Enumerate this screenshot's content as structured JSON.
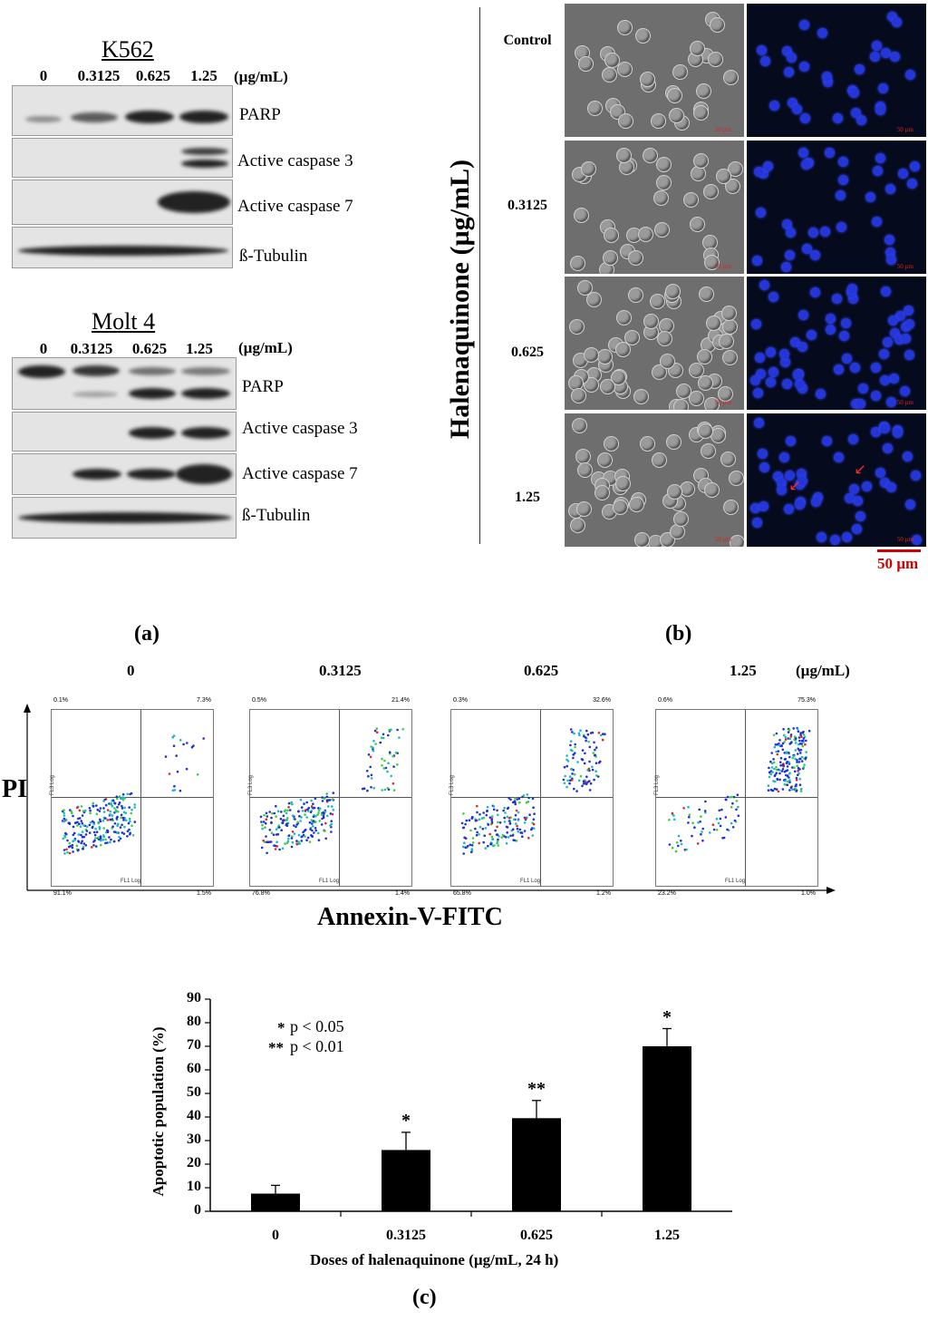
{
  "panel_a": {
    "unit": "(µg/mL)",
    "doses": [
      "0",
      "0.3125",
      "0.625",
      "1.25"
    ],
    "k562": {
      "title": "K562",
      "proteins": [
        "PARP",
        "Active caspase 3",
        "Active caspase 7",
        "ß-Tubulin"
      ]
    },
    "molt4": {
      "title": "Molt 4",
      "proteins": [
        "PARP",
        "Active caspase 3",
        "Active caspase 7",
        "ß-Tubulin"
      ]
    },
    "caption": "(a)"
  },
  "panel_b": {
    "axis_title": "Halenaquinone (µg/mL)",
    "rows": [
      "Control",
      "0.3125",
      "0.625",
      "1.25"
    ],
    "image_scale": "50 µm",
    "scale_bar_label": "50 µm",
    "caption": "(b)"
  },
  "panel_c_flow": {
    "doses": [
      "0",
      "0.3125",
      "0.625",
      "1.25"
    ],
    "unit": "(µg/mL)",
    "y_axis_title": "PI",
    "x_axis_title": "Annexin-V-FITC",
    "plot_x_label": "FL1 Log",
    "plot_y_label": "FL3 Log",
    "quadrants": [
      {
        "ul": "0.1%",
        "ur": "7.3%",
        "ll": "91.1%",
        "lr": "1.5%"
      },
      {
        "ul": "0.5%",
        "ur": "21.4%",
        "ll": "76.8%",
        "lr": "1.4%"
      },
      {
        "ul": "0.3%",
        "ur": "32.6%",
        "ll": "65.8%",
        "lr": "1.2%"
      },
      {
        "ul": "0.6%",
        "ur": "75.3%",
        "ll": "23.2%",
        "lr": "1.0%"
      }
    ]
  },
  "chart_data": {
    "type": "bar",
    "categories": [
      "0",
      "0.3125",
      "0.625",
      "1.25"
    ],
    "values": [
      7.5,
      26,
      39.5,
      70
    ],
    "errors": [
      3.5,
      7.5,
      7.5,
      7.5
    ],
    "significance": [
      "",
      "*",
      "**",
      "*"
    ],
    "ylim": [
      0,
      90
    ],
    "yticks": [
      "0",
      "10",
      "20",
      "30",
      "40",
      "50",
      "60",
      "70",
      "80",
      "90"
    ],
    "ylabel": "Apoptotic  population (%)",
    "xlabel": "Doses of  halenaquinone (µg/mL, 24 h)",
    "legend": [
      {
        "stars": "*",
        "text": "p < 0.05"
      },
      {
        "stars": "**",
        "text": "p < 0.01"
      }
    ],
    "bar_color": "#000000"
  },
  "panel_c_caption": "(c)"
}
